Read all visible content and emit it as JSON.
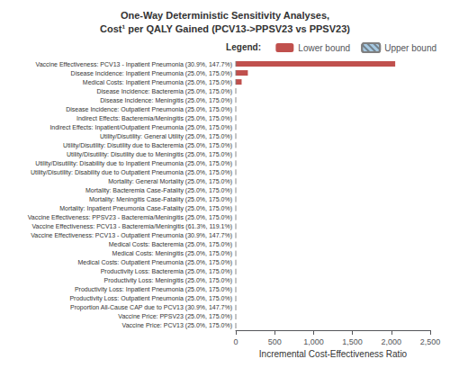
{
  "chart_data": {
    "type": "bar",
    "orientation": "horizontal",
    "title": "One-Way Deterministic Sensitivity Analyses,\nCost¹ per QALY Gained (PCV13->PPSV23 vs PPSV23)",
    "xlabel": "Incremental Cost-Effectiveness Ratio",
    "categories": [
      "Vaccine Effectiveness: PCV13 - Inpatient Pneumonia (30.9%, 147.7%)",
      "Disease Incidence: Inpatient Pneumonia (25.0%, 175.0%)",
      "Medical Costs: Inpatient Pneumonia (25.0%, 175.0%)",
      "Disease Incidence: Bacteremia (25.0%, 175.0%)",
      "Disease Incidence: Meningitis (25.0%, 175.0%)",
      "Disease Incidence: Outpatient Pneumonia (25.0%, 175.0%)",
      "Indirect Effects: Bacteremia/Meningitis (25.0%, 175.0%)",
      "Indirect Effects: Inpatient/Outpatient Pneumonia (25.0%, 175.0%)",
      "Utility/Disutility: General Utility (25.0%, 175.0%)",
      "Utility/Disutility: Disutility due to Bacteremia (25.0%, 175.0%)",
      "Utility/Disutility: Disutility due to Meningitis (25.0%, 175.0%)",
      "Utility/Disutility: Disability due to Inpatient Pneumonia (25.0%, 175.0%)",
      "Utility/Disutility: Disability due to Outpatient Pneumonia (25.0%, 175.0%)",
      "Mortality: General Mortality (25.0%, 175.0%)",
      "Mortality: Bacteremia Case-Fatality (25.0%, 175.0%)",
      "Mortality: Meningitis Case-Fatality (25.0%, 175.0%)",
      "Mortality: Inpatient Pneumonia Case-Fatality (25.0%, 175.0%)",
      "Vaccine Effectiveness: PPSV23 - Bacteremia/Meningitis (25.0%, 175.0%)",
      "Vaccine Effectiveness: PCV13 - Bacteremia/Meningitis (61.3%, 119.1%)",
      "Vaccine Effectiveness: PCV13 - Outpatient Pneumonia (30.9%, 147.7%)",
      "Medical Costs: Bacteremia (25.0%, 175.0%)",
      "Medical Costs: Meningitis (25.0%, 175.0%)",
      "Medical Costs: Outpatient Pneumonia (25.0%, 175.0%)",
      "Productivity Loss: Bacteremia (25.0%, 175.0%)",
      "Productivity Loss: Meningitis (25.0%, 175.0%)",
      "Productivity Loss: Inpatient Pneumonia (25.0%, 175.0%)",
      "Productivity Loss: Outpatient Pneumonia (25.0%, 175.0%)",
      "Proportion All-Cause CAP due to PCV13 (30.9%, 147.7%)",
      "Vaccine Price: PPSV23 (25.0%, 175.0%)",
      "Vaccine Price: PCV13 (25.0%, 175.0%)"
    ],
    "series": [
      {
        "name": "Lower bound",
        "color": "#C0504D",
        "values": [
          2050,
          155,
          75,
          0,
          0,
          0,
          0,
          0,
          0,
          0,
          0,
          0,
          0,
          0,
          0,
          0,
          0,
          0,
          0,
          0,
          0,
          0,
          0,
          0,
          0,
          0,
          0,
          0,
          0,
          0
        ]
      },
      {
        "name": "Upper bound",
        "color": "#A6C9E2",
        "values": [
          0,
          0,
          0,
          0,
          0,
          0,
          0,
          0,
          0,
          0,
          0,
          0,
          0,
          0,
          0,
          0,
          0,
          0,
          0,
          0,
          0,
          0,
          0,
          0,
          0,
          0,
          0,
          0,
          0,
          0
        ]
      }
    ],
    "xlim": [
      0,
      2500
    ],
    "xticks": [
      0,
      500,
      {
        "value": 1000,
        "label": "1,000"
      },
      {
        "value": 1500,
        "label": "1,500"
      },
      {
        "value": 2000,
        "label": "2,000"
      },
      {
        "value": 2500,
        "label": "2,500"
      }
    ],
    "grid": false,
    "legend": "upper right",
    "legend_title": "Legend:"
  }
}
